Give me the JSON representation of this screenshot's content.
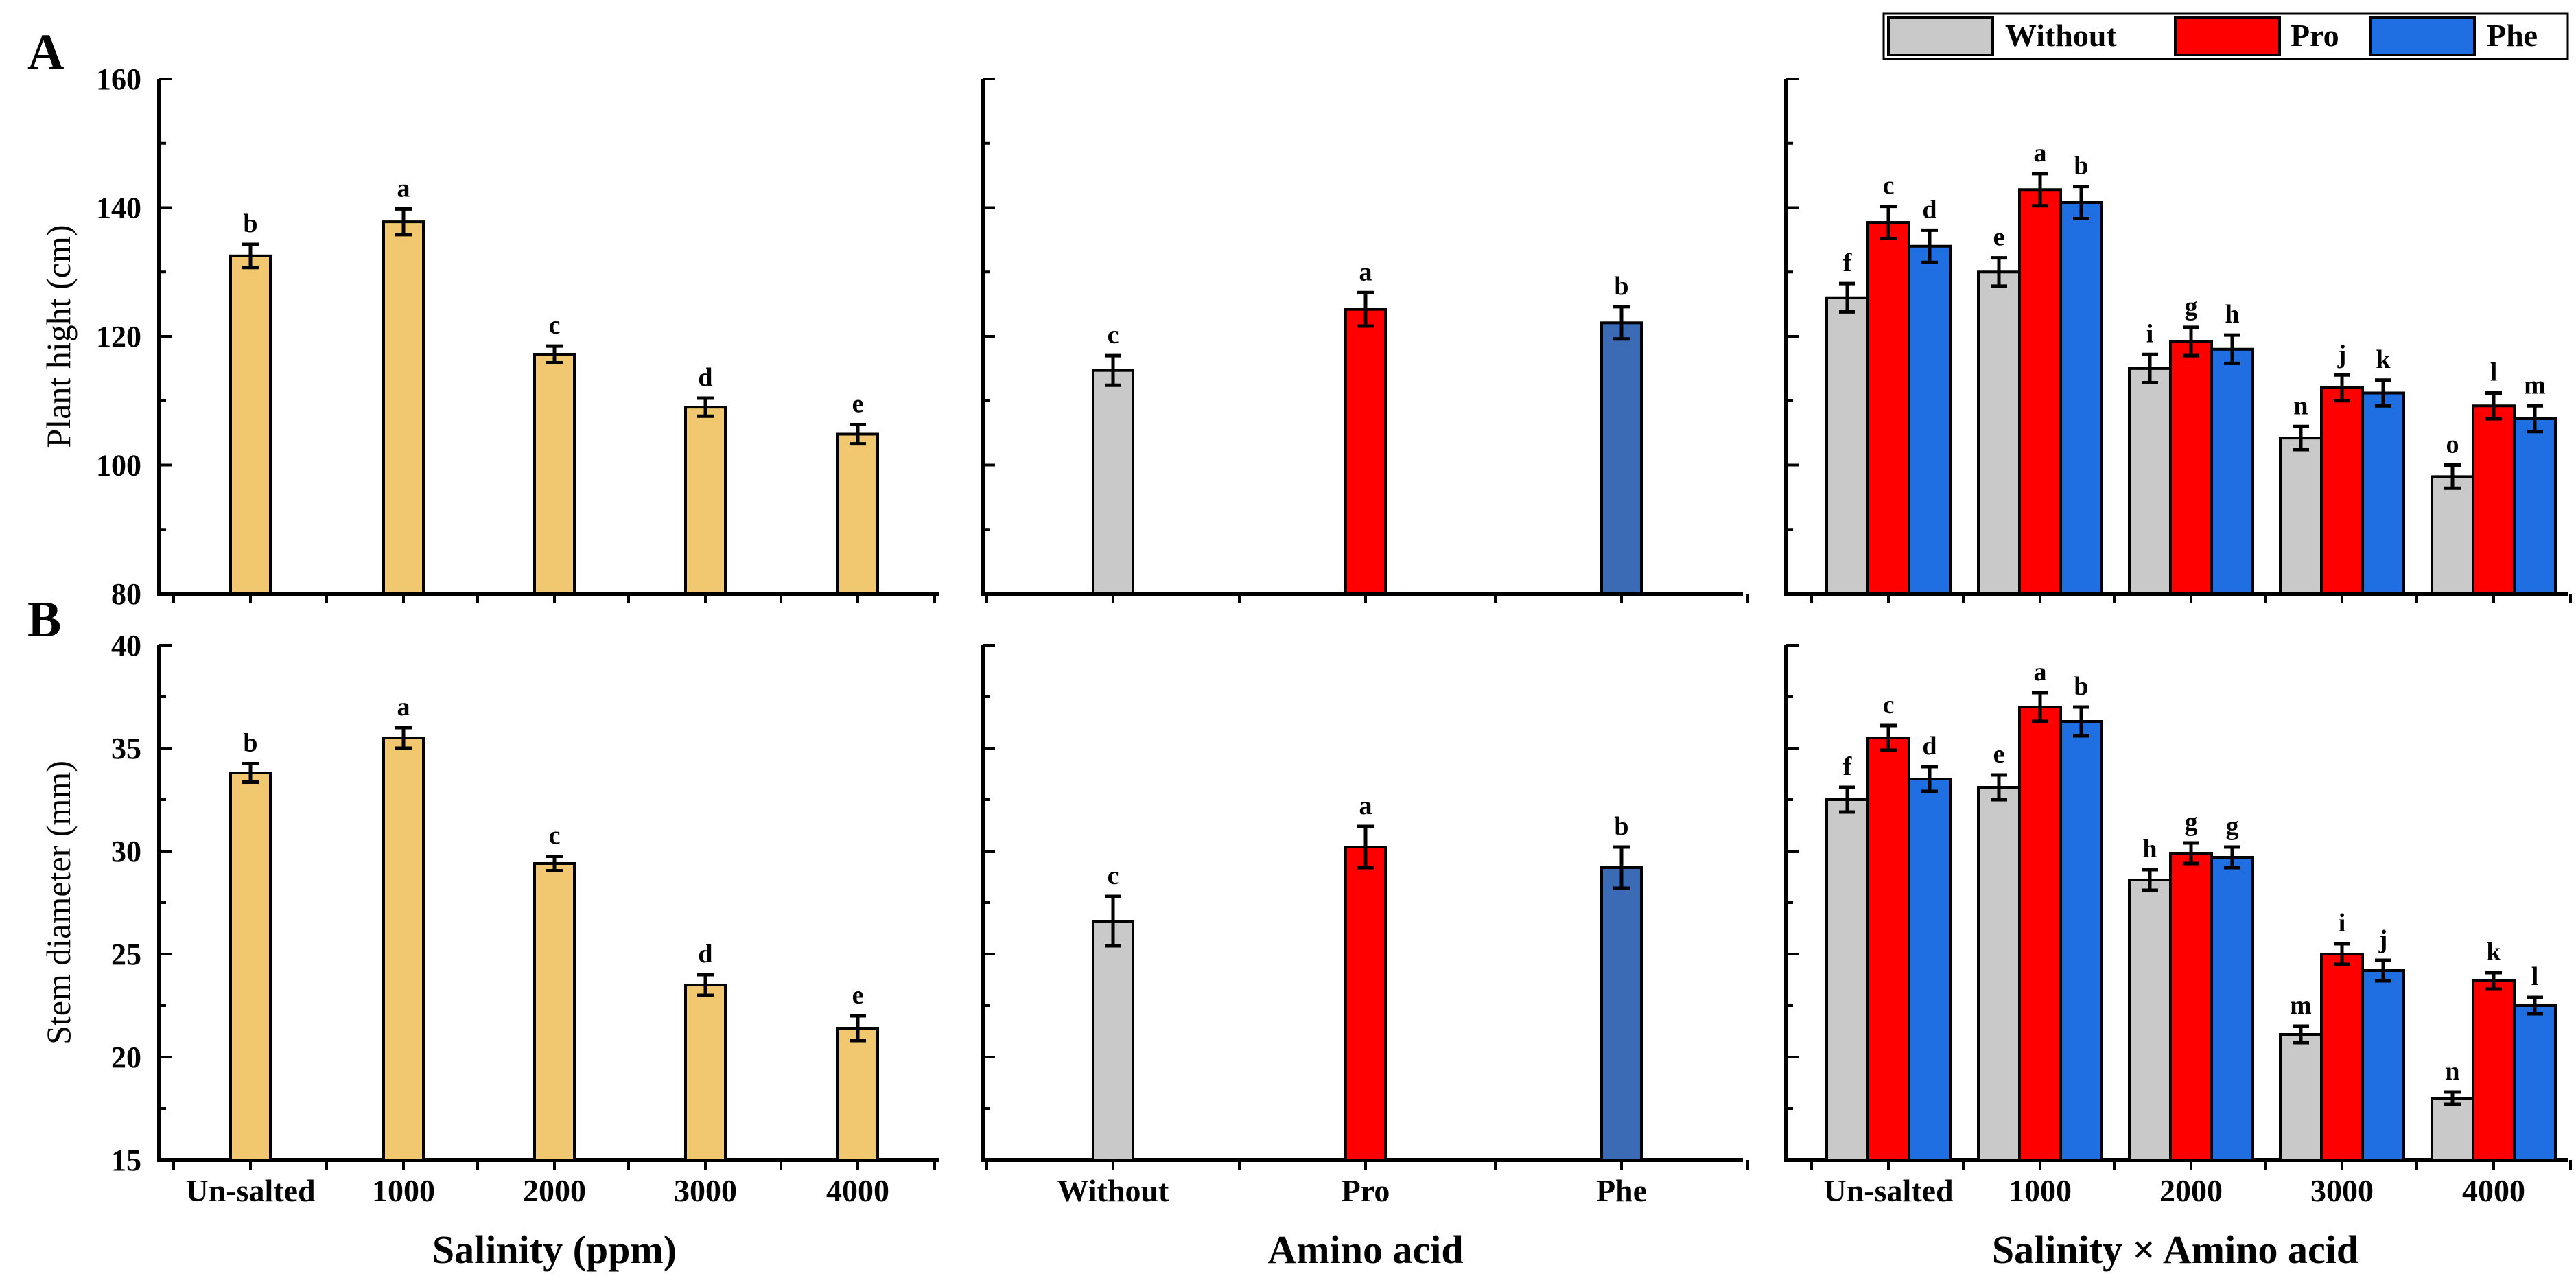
{
  "panel_labels": [
    "A",
    "B"
  ],
  "colors": {
    "salinity_bar": "#f1c76f",
    "without": "#c9c9c9",
    "pro": "#ff0000",
    "phe_main": "#3b6bb4",
    "phe_interaction": "#1f6fe3"
  },
  "legend": {
    "items": [
      {
        "label": "Without",
        "color": "#c9c9c9"
      },
      {
        "label": "Pro",
        "color": "#ff0000"
      },
      {
        "label": "Phe",
        "color": "#1f6fe3"
      }
    ]
  },
  "x_titles": [
    "Salinity (ppm)",
    "Amino acid",
    "Salinity × Amino acid"
  ],
  "chart_data": [
    {
      "type": "bar",
      "row": "A",
      "column": 0,
      "ylabel": "Plant hight (cm)",
      "ylim": [
        80,
        160
      ],
      "yticks": [
        80,
        100,
        120,
        140,
        160
      ],
      "categories": [
        "Un-salted",
        "1000",
        "2000",
        "3000",
        "4000"
      ],
      "values": [
        132.5,
        137.8,
        117.2,
        109.0,
        104.8
      ],
      "errors": [
        1.8,
        2.0,
        1.3,
        1.4,
        1.5
      ],
      "letters": [
        "b",
        "a",
        "c",
        "d",
        "e"
      ]
    },
    {
      "type": "bar",
      "row": "A",
      "column": 1,
      "ylim": [
        80,
        160
      ],
      "categories": [
        "Without",
        "Pro",
        "Phe"
      ],
      "values": [
        114.7,
        124.2,
        122.1
      ],
      "errors": [
        2.3,
        2.6,
        2.5
      ],
      "letters": [
        "c",
        "a",
        "b"
      ]
    },
    {
      "type": "bar",
      "row": "A",
      "column": 2,
      "ylim": [
        80,
        160
      ],
      "categories": [
        "Un-salted",
        "1000",
        "2000",
        "3000",
        "4000"
      ],
      "series": [
        {
          "name": "Without",
          "values": [
            126.0,
            130.0,
            115.0,
            104.2,
            98.2
          ],
          "errors": [
            2.2,
            2.2,
            2.2,
            1.8,
            1.8
          ],
          "letters": [
            "f",
            "e",
            "i",
            "n",
            "o"
          ]
        },
        {
          "name": "Pro",
          "values": [
            137.7,
            142.8,
            119.2,
            112.0,
            109.2
          ],
          "errors": [
            2.5,
            2.5,
            2.2,
            2.0,
            2.0
          ],
          "letters": [
            "c",
            "a",
            "g",
            "j",
            "l"
          ]
        },
        {
          "name": "Phe",
          "values": [
            134.0,
            140.8,
            118.0,
            111.2,
            107.2
          ],
          "errors": [
            2.5,
            2.5,
            2.2,
            2.0,
            2.0
          ],
          "letters": [
            "d",
            "b",
            "h",
            "k",
            "m"
          ]
        }
      ]
    },
    {
      "type": "bar",
      "row": "B",
      "column": 0,
      "ylabel": "Stem diameter (mm)",
      "ylim": [
        15,
        40
      ],
      "yticks": [
        15,
        20,
        25,
        30,
        35,
        40
      ],
      "categories": [
        "Un-salted",
        "1000",
        "2000",
        "3000",
        "4000"
      ],
      "values": [
        33.8,
        35.5,
        29.4,
        23.5,
        21.4
      ],
      "errors": [
        0.45,
        0.5,
        0.35,
        0.5,
        0.6
      ],
      "letters": [
        "b",
        "a",
        "c",
        "d",
        "e"
      ]
    },
    {
      "type": "bar",
      "row": "B",
      "column": 1,
      "ylim": [
        15,
        40
      ],
      "categories": [
        "Without",
        "Pro",
        "Phe"
      ],
      "values": [
        26.6,
        30.2,
        29.2
      ],
      "errors": [
        1.2,
        1.0,
        1.0
      ],
      "letters": [
        "c",
        "a",
        "b"
      ]
    },
    {
      "type": "bar",
      "row": "B",
      "column": 2,
      "ylim": [
        15,
        40
      ],
      "categories": [
        "Un-salted",
        "1000",
        "2000",
        "3000",
        "4000"
      ],
      "series": [
        {
          "name": "Without",
          "values": [
            32.5,
            33.1,
            28.6,
            21.1,
            18.0
          ],
          "errors": [
            0.6,
            0.6,
            0.5,
            0.4,
            0.3
          ],
          "letters": [
            "f",
            "e",
            "h",
            "m",
            "n"
          ]
        },
        {
          "name": "Pro",
          "values": [
            35.5,
            37.0,
            29.9,
            25.0,
            23.7
          ],
          "errors": [
            0.6,
            0.7,
            0.5,
            0.5,
            0.4
          ],
          "letters": [
            "c",
            "a",
            "g",
            "i",
            "k"
          ]
        },
        {
          "name": "Phe",
          "values": [
            33.5,
            36.3,
            29.7,
            24.2,
            22.5
          ],
          "errors": [
            0.6,
            0.7,
            0.5,
            0.5,
            0.4
          ],
          "letters": [
            "d",
            "b",
            "g",
            "j",
            "l"
          ]
        }
      ]
    }
  ]
}
